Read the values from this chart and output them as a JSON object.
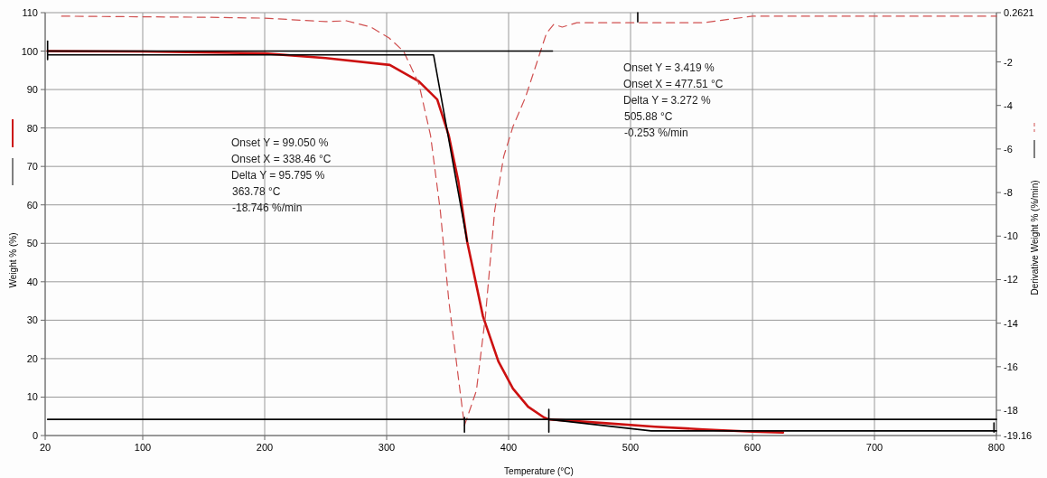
{
  "chart_data": {
    "type": "line",
    "xlabel": "Temperature (°C)",
    "ylabel": "Weight % (%)",
    "y2label": "Derivative Weight % (%/min)",
    "xlim": [
      20,
      800
    ],
    "xticks": [
      20,
      100,
      200,
      300,
      400,
      500,
      600,
      700,
      800
    ],
    "ylim": [
      0,
      110
    ],
    "yticks": [
      0,
      10,
      20,
      30,
      40,
      50,
      60,
      70,
      80,
      90,
      100,
      110
    ],
    "y2lim": [
      -19.16,
      0.2621
    ],
    "y2ticks": [
      -19.16,
      -18,
      -16,
      -14,
      -12,
      -10,
      -8,
      -6,
      -4,
      -2,
      0.2621
    ],
    "grid": true,
    "series": [
      {
        "color": "#cc1010",
        "line_style": "solid",
        "axis": "y",
        "x": [
          22,
          100,
          200,
          250,
          302.6,
          326.5,
          341.5,
          351,
          358.7,
          366,
          379,
          391.6,
          403.6,
          416,
          429,
          433,
          480,
          520,
          560,
          600,
          625
        ],
        "values": [
          100,
          99.9,
          99.4,
          98.2,
          96.4,
          92.1,
          87.4,
          78,
          66.3,
          50.5,
          31,
          19.3,
          12.2,
          7.5,
          4.7,
          4.2,
          3.2,
          2.3,
          1.6,
          1.0,
          0.8
        ]
      },
      {
        "color": "#d05050",
        "line_style": "dashed",
        "axis": "y2",
        "x": [
          33.5,
          150,
          200,
          250,
          267,
          287,
          302,
          314,
          326.5,
          336,
          344,
          351,
          358.7,
          363.8,
          373.6,
          381,
          388.6,
          396,
          403.6,
          414,
          423.7,
          431,
          437,
          444,
          456,
          520,
          560,
          600,
          700,
          800
        ],
        "values": [
          0.1,
          0.05,
          0.01,
          -0.15,
          -0.11,
          -0.4,
          -0.9,
          -1.52,
          -3.02,
          -5.38,
          -8.83,
          -12.98,
          -16.46,
          -18.7,
          -17.1,
          -13.68,
          -8.83,
          -6.34,
          -4.97,
          -3.6,
          -1.94,
          -0.69,
          -0.28,
          -0.4,
          -0.2,
          -0.2,
          -0.2,
          0.1,
          0.1,
          0.1
        ]
      },
      {
        "color": "#000000",
        "line_style": "solid",
        "axis": "y",
        "x": [
          22,
          436
        ],
        "values": [
          100,
          100
        ]
      },
      {
        "color": "#000000",
        "line_style": "solid",
        "axis": "y",
        "x": [
          22,
          338.5,
          366
        ],
        "values": [
          99,
          99,
          50.5
        ]
      },
      {
        "color": "#000000",
        "line_style": "solid",
        "axis": "y",
        "x": [
          22,
          800
        ],
        "values": [
          4.2,
          4.2
        ]
      },
      {
        "color": "#000000",
        "line_style": "solid",
        "axis": "y",
        "x": [
          433,
          517,
          800
        ],
        "values": [
          4.2,
          1.2,
          1.2
        ]
      },
      {
        "color": "#000000",
        "line_style": "solid",
        "axis": "y",
        "x": [
          22,
          22
        ],
        "values": [
          97.8,
          102.6
        ]
      },
      {
        "color": "#000000",
        "line_style": "solid",
        "axis": "y",
        "x": [
          433,
          433
        ],
        "values": [
          0.9,
          6.8
        ]
      },
      {
        "color": "#000000",
        "line_style": "solid",
        "axis": "y",
        "x": [
          363.8,
          363.8
        ],
        "values": [
          0.9,
          4.7
        ]
      },
      {
        "color": "#000000",
        "line_style": "solid",
        "axis": "y",
        "x": [
          505.9,
          505.9
        ],
        "values": [
          107.6,
          110
        ]
      },
      {
        "color": "#000000",
        "line_style": "solid",
        "axis": "y",
        "x": [
          798,
          798
        ],
        "values": [
          0.9,
          3.3
        ]
      }
    ],
    "annotations": [
      "Onset Y = 99.050 %",
      "Onset X = 338.46 °C",
      "Delta Y = 95.795 %",
      "363.78 °C",
      "-18.746 %/min",
      "Onset Y = 3.419 %",
      "Onset X = 477.51 °C",
      "Delta Y = 3.272 %",
      "505.88 °C",
      "-0.253 %/min"
    ]
  }
}
